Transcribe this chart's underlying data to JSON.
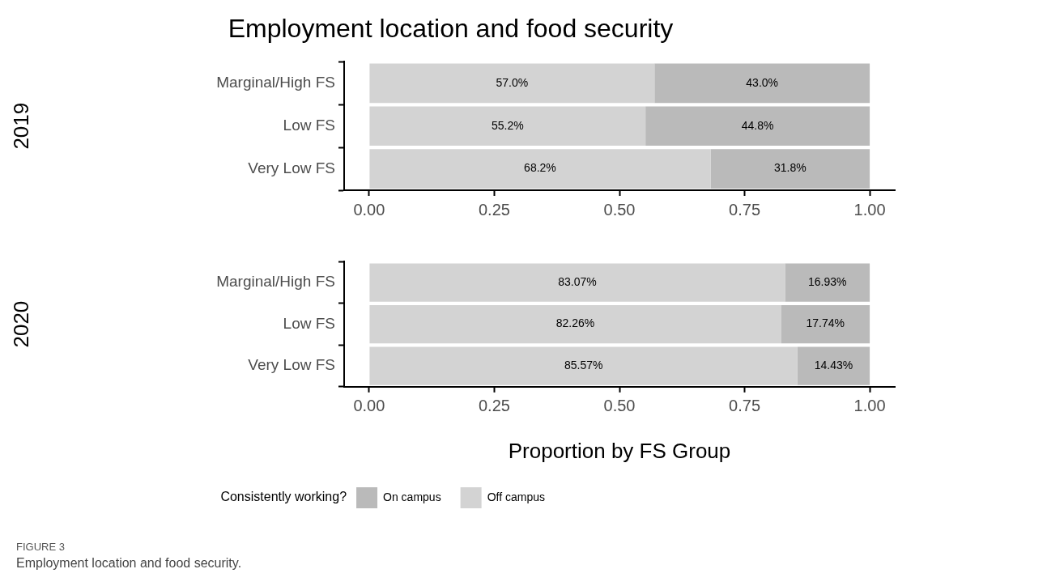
{
  "chart_data": [
    {
      "type": "bar",
      "orientation": "horizontal",
      "stacked": true,
      "title": "Employment location and food security",
      "ylabel": "2019",
      "categories": [
        "Marginal/High FS",
        "Low FS",
        "Very Low FS"
      ],
      "series": [
        {
          "color": "#d3d3d3",
          "values": [
            0.57,
            0.552,
            0.682
          ],
          "value_labels": [
            "57.0%",
            "55.2%",
            "68.2%"
          ]
        },
        {
          "color": "#bababa",
          "values": [
            0.43,
            0.448,
            0.318
          ],
          "value_labels": [
            "43.0%",
            "44.8%",
            "31.8%"
          ]
        }
      ],
      "xlim": [
        -0.05,
        1.05
      ],
      "xticks": [
        {
          "value": 0,
          "label": "0.00"
        },
        {
          "value": 0.25,
          "label": "0.25"
        },
        {
          "value": 0.5,
          "label": "0.50"
        },
        {
          "value": 0.75,
          "label": "0.75"
        },
        {
          "value": 1,
          "label": "1.00"
        }
      ],
      "grid": false
    },
    {
      "type": "bar",
      "orientation": "horizontal",
      "stacked": true,
      "ylabel": "2020",
      "xlabel": "Proportion by FS Group",
      "legend": "bottom",
      "legend_title": "Consistently working?",
      "categories": [
        "Marginal/High FS",
        "Low FS",
        "Very Low FS"
      ],
      "series": [
        {
          "name": "Off campus",
          "color": "#d3d3d3",
          "values": [
            0.8307,
            0.8226,
            0.8557
          ],
          "value_labels": [
            "83.07%",
            "82.26%",
            "85.57%"
          ]
        },
        {
          "name": "On campus",
          "color": "#bababa",
          "values": [
            0.1693,
            0.1774,
            0.1443
          ],
          "value_labels": [
            "16.93%",
            "17.74%",
            "14.43%"
          ]
        }
      ],
      "xlim": [
        -0.05,
        1.05
      ],
      "xticks": [
        {
          "value": 0,
          "label": "0.00"
        },
        {
          "value": 0.25,
          "label": "0.25"
        },
        {
          "value": 0.5,
          "label": "0.50"
        },
        {
          "value": 0.75,
          "label": "0.75"
        },
        {
          "value": 1,
          "label": "1.00"
        }
      ],
      "grid": false,
      "annotations": [
        "FIGURE 3",
        "Employment location and food security."
      ]
    }
  ]
}
